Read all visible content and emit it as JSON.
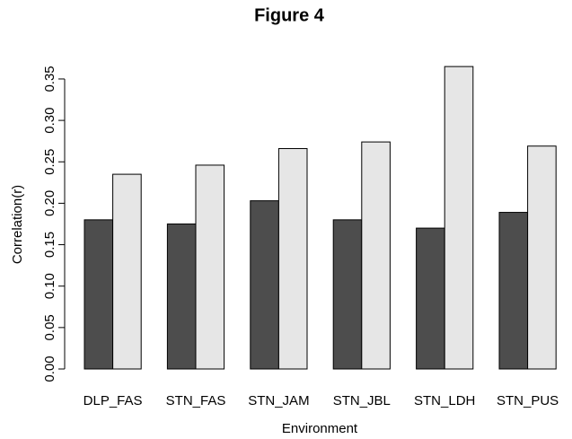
{
  "chart_data": {
    "type": "bar",
    "title": "Figure 4",
    "x_label": "Environment",
    "y_label": "Correlation(r)",
    "categories": [
      "DLP_FAS",
      "STN_FAS",
      "STN_JAM",
      "STN_JBL",
      "STN_LDH",
      "STN_PUS"
    ],
    "series": [
      {
        "color": "#4d4d4d",
        "values": [
          0.18,
          0.175,
          0.203,
          0.18,
          0.17,
          0.189
        ]
      },
      {
        "color": "#e6e6e6",
        "values": [
          0.235,
          0.246,
          0.266,
          0.274,
          0.365,
          0.269
        ]
      }
    ],
    "ylim": [
      0,
      0.37
    ],
    "yticks": [
      {
        "value": 0,
        "label": "0.00"
      },
      0.05,
      {
        "value": 0.1,
        "label": "0.10"
      },
      0.15,
      {
        "value": 0.2,
        "label": "0.20"
      },
      0.25,
      {
        "value": 0.3,
        "label": "0.30"
      },
      0.35
    ],
    "grid": false
  }
}
